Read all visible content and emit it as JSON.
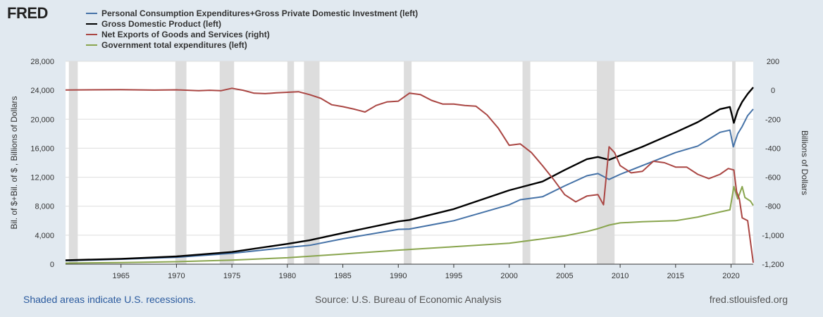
{
  "brand": {
    "logo_text": "FRED"
  },
  "footer": {
    "note": "Shaded areas indicate U.S. recessions.",
    "source": "Source: U.S. Bureau of Economic Analysis",
    "site": "fred.stlouisfed.org"
  },
  "colors": {
    "pce_gpdi": "#4572a7",
    "gdp": "#000000",
    "net_exports": "#aa4643",
    "govt": "#89a54e",
    "recession": "#dddddd",
    "grid": "#dddddd"
  },
  "chart_data": {
    "type": "line",
    "title": "",
    "ylabel_left": "Bil. of $+Bil. of $ , Billions of Dollars",
    "ylabel_right": "Billions of Dollars",
    "xlim": [
      1960,
      2022
    ],
    "ylim_left": [
      0,
      28000
    ],
    "ylim_right": [
      -1200,
      200
    ],
    "x_ticks": [
      "1965",
      "1970",
      "1975",
      "1980",
      "1985",
      "1990",
      "1995",
      "2000",
      "2005",
      "2010",
      "2015",
      "2020"
    ],
    "y_ticks_left": [
      "0",
      "4,000",
      "8,000",
      "12,000",
      "16,000",
      "20,000",
      "24,000",
      "28,000"
    ],
    "y_ticks_right": [
      "-1,200",
      "-1,000",
      "-800",
      "-600",
      "-400",
      "-200",
      "0",
      "200"
    ],
    "grid": true,
    "legend_position": "top-left",
    "recessions": [
      [
        1960.3,
        1961.1
      ],
      [
        1969.9,
        1970.9
      ],
      [
        1973.9,
        1975.2
      ],
      [
        1980.0,
        1980.6
      ],
      [
        1981.5,
        1982.9
      ],
      [
        1990.5,
        1991.2
      ],
      [
        2001.2,
        2001.9
      ],
      [
        2007.9,
        2009.5
      ],
      [
        2020.1,
        2020.4
      ]
    ],
    "series": [
      {
        "name": "Personal Consumption Expenditures+Gross Private Domestic Investment (left)",
        "axis": "left",
        "points": [
          [
            1960,
            480
          ],
          [
            1965,
            680
          ],
          [
            1970,
            950
          ],
          [
            1975,
            1500
          ],
          [
            1980,
            2300
          ],
          [
            1982,
            2600
          ],
          [
            1985,
            3500
          ],
          [
            1990,
            4800
          ],
          [
            1991,
            4850
          ],
          [
            1995,
            6000
          ],
          [
            2000,
            8200
          ],
          [
            2001,
            8900
          ],
          [
            2003,
            9300
          ],
          [
            2005,
            10800
          ],
          [
            2007,
            12200
          ],
          [
            2008,
            12500
          ],
          [
            2009,
            11700
          ],
          [
            2010,
            12400
          ],
          [
            2012,
            13600
          ],
          [
            2015,
            15400
          ],
          [
            2017,
            16300
          ],
          [
            2019,
            18200
          ],
          [
            2019.9,
            18500
          ],
          [
            2020.2,
            16200
          ],
          [
            2020.6,
            18000
          ],
          [
            2021,
            19000
          ],
          [
            2021.5,
            20500
          ],
          [
            2022,
            21400
          ]
        ]
      },
      {
        "name": "Gross Domestic Product (left)",
        "axis": "left",
        "points": [
          [
            1960,
            540
          ],
          [
            1965,
            740
          ],
          [
            1970,
            1070
          ],
          [
            1975,
            1680
          ],
          [
            1980,
            2800
          ],
          [
            1982,
            3300
          ],
          [
            1985,
            4300
          ],
          [
            1990,
            5900
          ],
          [
            1991,
            6100
          ],
          [
            1995,
            7600
          ],
          [
            2000,
            10200
          ],
          [
            2001,
            10600
          ],
          [
            2003,
            11400
          ],
          [
            2005,
            13000
          ],
          [
            2007,
            14500
          ],
          [
            2008,
            14800
          ],
          [
            2009,
            14400
          ],
          [
            2010,
            15000
          ],
          [
            2012,
            16200
          ],
          [
            2015,
            18200
          ],
          [
            2017,
            19600
          ],
          [
            2019,
            21400
          ],
          [
            2019.9,
            21700
          ],
          [
            2020.25,
            19500
          ],
          [
            2020.6,
            21200
          ],
          [
            2021,
            22400
          ],
          [
            2021.5,
            23500
          ],
          [
            2022,
            24400
          ]
        ]
      },
      {
        "name": "Net Exports of Goods and Services (right)",
        "axis": "right",
        "points": [
          [
            1960,
            2
          ],
          [
            1965,
            4
          ],
          [
            1968,
            1
          ],
          [
            1970,
            3
          ],
          [
            1972,
            -3
          ],
          [
            1973,
            0
          ],
          [
            1974,
            -3
          ],
          [
            1975,
            14
          ],
          [
            1976,
            0
          ],
          [
            1977,
            -20
          ],
          [
            1978,
            -23
          ],
          [
            1979,
            -18
          ],
          [
            1980,
            -14
          ],
          [
            1981,
            -10
          ],
          [
            1982,
            -30
          ],
          [
            1983,
            -55
          ],
          [
            1984,
            -100
          ],
          [
            1985,
            -113
          ],
          [
            1986,
            -130
          ],
          [
            1987,
            -150
          ],
          [
            1988,
            -105
          ],
          [
            1989,
            -80
          ],
          [
            1990,
            -75
          ],
          [
            1991,
            -20
          ],
          [
            1992,
            -30
          ],
          [
            1993,
            -70
          ],
          [
            1994,
            -95
          ],
          [
            1995,
            -95
          ],
          [
            1996,
            -105
          ],
          [
            1997,
            -110
          ],
          [
            1998,
            -170
          ],
          [
            1999,
            -260
          ],
          [
            2000,
            -380
          ],
          [
            2001,
            -370
          ],
          [
            2002,
            -430
          ],
          [
            2003,
            -520
          ],
          [
            2004,
            -615
          ],
          [
            2005,
            -720
          ],
          [
            2006,
            -770
          ],
          [
            2007,
            -730
          ],
          [
            2008,
            -720
          ],
          [
            2008.5,
            -790
          ],
          [
            2009,
            -390
          ],
          [
            2009.5,
            -430
          ],
          [
            2010,
            -520
          ],
          [
            2011,
            -570
          ],
          [
            2012,
            -560
          ],
          [
            2013,
            -490
          ],
          [
            2014,
            -500
          ],
          [
            2015,
            -530
          ],
          [
            2016,
            -530
          ],
          [
            2017,
            -580
          ],
          [
            2018,
            -610
          ],
          [
            2019,
            -580
          ],
          [
            2019.75,
            -540
          ],
          [
            2020.25,
            -550
          ],
          [
            2020.5,
            -700
          ],
          [
            2020.75,
            -750
          ],
          [
            2021,
            -880
          ],
          [
            2021.5,
            -900
          ],
          [
            2022,
            -1190
          ]
        ]
      },
      {
        "name": "Government total expenditures (left)",
        "axis": "left",
        "points": [
          [
            1960,
            150
          ],
          [
            1965,
            220
          ],
          [
            1970,
            340
          ],
          [
            1975,
            560
          ],
          [
            1980,
            880
          ],
          [
            1985,
            1400
          ],
          [
            1990,
            1930
          ],
          [
            1995,
            2400
          ],
          [
            2000,
            2900
          ],
          [
            2002,
            3300
          ],
          [
            2005,
            3900
          ],
          [
            2007,
            4500
          ],
          [
            2008,
            4900
          ],
          [
            2009,
            5400
          ],
          [
            2010,
            5700
          ],
          [
            2012,
            5850
          ],
          [
            2015,
            6000
          ],
          [
            2017,
            6500
          ],
          [
            2019,
            7200
          ],
          [
            2019.9,
            7500
          ],
          [
            2020.25,
            10700
          ],
          [
            2020.6,
            9000
          ],
          [
            2021,
            10700
          ],
          [
            2021.25,
            9200
          ],
          [
            2021.75,
            8700
          ],
          [
            2022,
            8100
          ]
        ]
      }
    ]
  }
}
